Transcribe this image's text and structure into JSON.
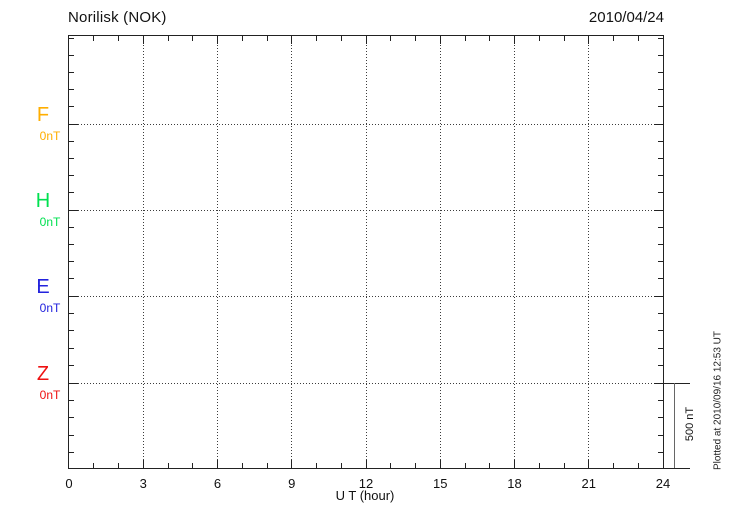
{
  "header": {
    "title": "Norilisk (NOK)",
    "date": "2010/04/24"
  },
  "chart_data": {
    "type": "line",
    "title": "Norilisk (NOK)",
    "date": "2010/04/24",
    "xlabel": "U T (hour)",
    "x_range_hours": [
      0,
      24
    ],
    "x_ticks": [
      0,
      3,
      6,
      9,
      12,
      15,
      18,
      21,
      24
    ],
    "x_minor_tick_step_hours": 1,
    "x_grid_step_hours": 3,
    "grid": true,
    "components": [
      {
        "label": "F",
        "baseline_value_label": "0nT",
        "baseline_value_nT": 0,
        "color": "#FFAE00"
      },
      {
        "label": "H",
        "baseline_value_label": "0nT",
        "baseline_value_nT": 0,
        "color": "#00E050"
      },
      {
        "label": "E",
        "baseline_value_label": "0nT",
        "baseline_value_nT": 0,
        "color": "#2222DD"
      },
      {
        "label": "Z",
        "baseline_value_label": "0nT",
        "baseline_value_nT": 0,
        "color": "#EE1111"
      }
    ],
    "series": [],
    "y_scale": {
      "label": "500 nT",
      "nT_per_division": 500,
      "minor_ticks_per_division": 5
    },
    "plotted_note": "Plotted at 2010/09/16 12:53 UT"
  }
}
